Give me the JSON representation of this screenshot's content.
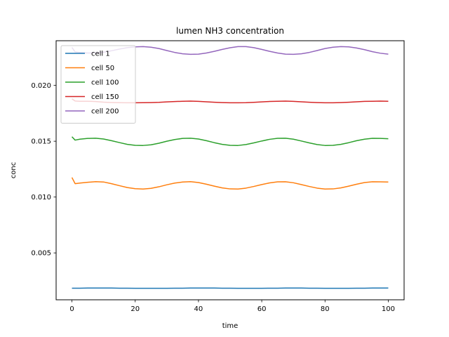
{
  "chart_data": {
    "type": "line",
    "title": "lumen NH3 concentration",
    "xlabel": "time",
    "ylabel": "conc",
    "xlim": [
      -5,
      105
    ],
    "ylim": [
      0.0008,
      0.024
    ],
    "xticks": [
      0,
      20,
      40,
      60,
      80,
      100
    ],
    "xtick_labels": [
      "0",
      "20",
      "40",
      "60",
      "80",
      "100"
    ],
    "yticks": [
      0.005,
      0.01,
      0.015,
      0.02
    ],
    "ytick_labels": [
      "0.005",
      "0.010",
      "0.015",
      "0.020"
    ],
    "grid": false,
    "legend_position": "top-left",
    "x": [
      0,
      1,
      2.5,
      5,
      7.5,
      10,
      12.5,
      15,
      17.5,
      20,
      22.5,
      25,
      27.5,
      30,
      32.5,
      35,
      37.5,
      40,
      42.5,
      45,
      47.5,
      50,
      52.5,
      55,
      57.5,
      60,
      62.5,
      65,
      67.5,
      70,
      72.5,
      75,
      77.5,
      80,
      82.5,
      85,
      87.5,
      90,
      92.5,
      95,
      97.5,
      100
    ],
    "series": [
      {
        "name": "cell 1",
        "color": "#1f77b4",
        "values": [
          0.00184,
          0.00184,
          0.00184,
          0.00185,
          0.00185,
          0.00185,
          0.00185,
          0.00184,
          0.00184,
          0.00183,
          0.00183,
          0.00183,
          0.00183,
          0.00183,
          0.00184,
          0.00184,
          0.00185,
          0.00185,
          0.00185,
          0.00185,
          0.00184,
          0.00184,
          0.00183,
          0.00183,
          0.00183,
          0.00183,
          0.00184,
          0.00184,
          0.00185,
          0.00185,
          0.00185,
          0.00184,
          0.00184,
          0.00183,
          0.00183,
          0.00183,
          0.00183,
          0.00184,
          0.00184,
          0.00185,
          0.00185,
          0.00185
        ]
      },
      {
        "name": "cell 50",
        "color": "#ff7f0e",
        "values": [
          0.01175,
          0.0112,
          0.01125,
          0.01132,
          0.01138,
          0.01135,
          0.0112,
          0.01102,
          0.01085,
          0.01075,
          0.01072,
          0.01078,
          0.01092,
          0.0111,
          0.01125,
          0.01135,
          0.01138,
          0.0113,
          0.01115,
          0.01098,
          0.01082,
          0.01073,
          0.01072,
          0.0108,
          0.01095,
          0.01112,
          0.01127,
          0.01136,
          0.01137,
          0.01128,
          0.01112,
          0.01095,
          0.0108,
          0.01072,
          0.01073,
          0.01082,
          0.01098,
          0.01115,
          0.0113,
          0.01137,
          0.01136,
          0.01135
        ]
      },
      {
        "name": "cell 100",
        "color": "#2ca02c",
        "values": [
          0.0154,
          0.0151,
          0.01518,
          0.01525,
          0.01527,
          0.0152,
          0.01505,
          0.01488,
          0.01472,
          0.01463,
          0.01462,
          0.01468,
          0.01482,
          0.015,
          0.01515,
          0.01525,
          0.01527,
          0.0152,
          0.01505,
          0.01487,
          0.01472,
          0.01463,
          0.01462,
          0.0147,
          0.01485,
          0.01502,
          0.01517,
          0.01526,
          0.01527,
          0.01518,
          0.01502,
          0.01485,
          0.0147,
          0.01462,
          0.01463,
          0.01472,
          0.01487,
          0.01505,
          0.01518,
          0.01526,
          0.01525,
          0.01522
        ]
      },
      {
        "name": "cell 150",
        "color": "#d62728",
        "values": [
          0.0188,
          0.0186,
          0.01858,
          0.01858,
          0.01855,
          0.0185,
          0.01847,
          0.01845,
          0.01844,
          0.01844,
          0.01845,
          0.01846,
          0.01848,
          0.01852,
          0.01855,
          0.01858,
          0.01859,
          0.01857,
          0.01853,
          0.01849,
          0.01846,
          0.01844,
          0.01844,
          0.01845,
          0.01848,
          0.01852,
          0.01856,
          0.01858,
          0.01859,
          0.01857,
          0.01853,
          0.01849,
          0.01846,
          0.01844,
          0.01844,
          0.01846,
          0.01849,
          0.01853,
          0.01857,
          0.01858,
          0.01859,
          0.01858
        ]
      },
      {
        "name": "cell 200",
        "color": "#9467bd",
        "values": [
          0.0234,
          0.023,
          0.02295,
          0.0229,
          0.0229,
          0.02297,
          0.0231,
          0.02325,
          0.02338,
          0.02345,
          0.02347,
          0.02342,
          0.0233,
          0.02312,
          0.02295,
          0.02283,
          0.02278,
          0.0228,
          0.0229,
          0.02305,
          0.02322,
          0.02337,
          0.02347,
          0.02347,
          0.02338,
          0.02322,
          0.02305,
          0.0229,
          0.0228,
          0.02278,
          0.02283,
          0.02295,
          0.02312,
          0.0233,
          0.02342,
          0.02347,
          0.02345,
          0.02335,
          0.0232,
          0.02302,
          0.02288,
          0.0228
        ]
      }
    ]
  }
}
